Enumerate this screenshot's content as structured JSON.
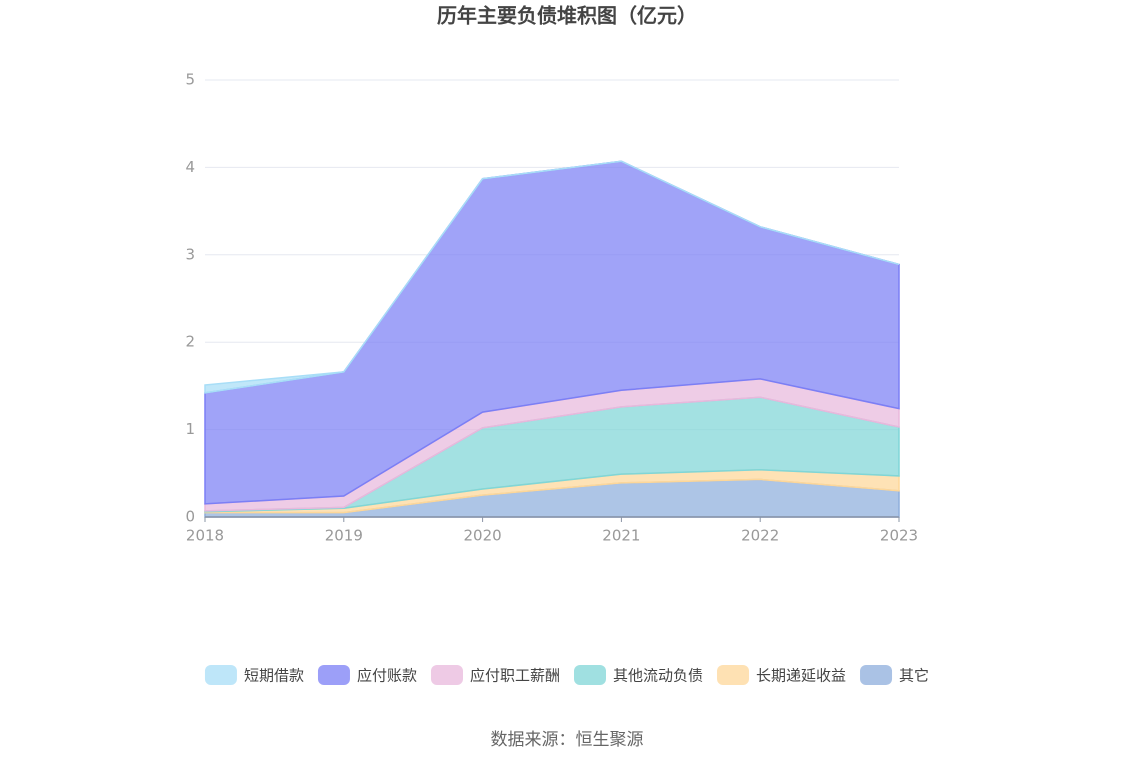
{
  "chart_data": {
    "type": "stacked-area",
    "title": "历年主要负债堆积图（亿元）",
    "categories": [
      "2018",
      "2019",
      "2020",
      "2021",
      "2022",
      "2023"
    ],
    "series": [
      {
        "name": "短期借款",
        "color": "#a8def7",
        "values": [
          0.09,
          0,
          0,
          0,
          0,
          0
        ]
      },
      {
        "name": "应付账款",
        "color": "#7b7ff5",
        "values": [
          1.27,
          1.42,
          2.67,
          2.62,
          1.74,
          1.65
        ]
      },
      {
        "name": "应付职工薪酬",
        "color": "#e8b8dc",
        "values": [
          0.08,
          0.13,
          0.18,
          0.19,
          0.21,
          0.21
        ]
      },
      {
        "name": "其他流动负债",
        "color": "#80d6d7",
        "values": [
          0.01,
          0.01,
          0.7,
          0.77,
          0.83,
          0.56
        ]
      },
      {
        "name": "长期递延收益",
        "color": "#fdd799",
        "values": [
          0.01,
          0.05,
          0.07,
          0.1,
          0.11,
          0.17
        ]
      },
      {
        "name": "其它",
        "color": "#8eaedc",
        "values": [
          0.05,
          0.05,
          0.25,
          0.39,
          0.43,
          0.3
        ]
      }
    ],
    "ylim": [
      0,
      5
    ],
    "yticks": [
      0,
      1,
      2,
      3,
      4,
      5
    ],
    "grid": true,
    "source": "数据来源：恒生聚源"
  }
}
